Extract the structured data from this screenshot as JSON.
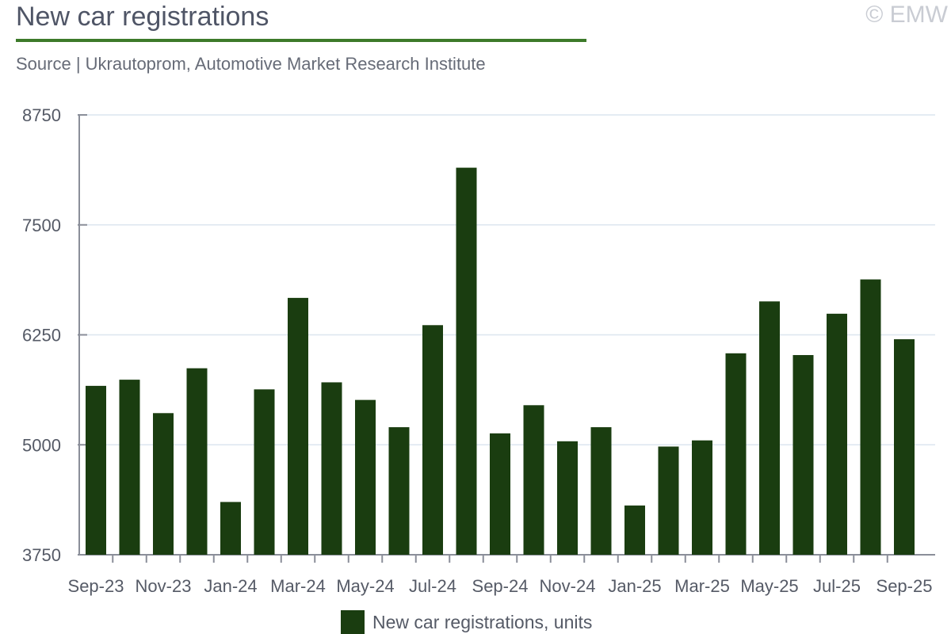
{
  "header": {
    "title": "New car registrations",
    "copyright": "© EMW",
    "source": "Source | Ukrautoprom, Automotive Market Research Institute"
  },
  "colors": {
    "bar": "#1a3d10",
    "accent": "#3d7a2a",
    "grid": "#dce6ef",
    "axis": "#8a8e99",
    "text": "#555a66"
  },
  "chart_data": {
    "type": "bar",
    "categories": [
      "Sep-23",
      "Oct-23",
      "Nov-23",
      "Dec-23",
      "Jan-24",
      "Feb-24",
      "Mar-24",
      "Apr-24",
      "May-24",
      "Jun-24",
      "Jul-24",
      "Aug-24",
      "Sep-24",
      "Oct-24",
      "Nov-24",
      "Dec-24",
      "Jan-25",
      "Feb-25",
      "Mar-25",
      "Apr-25",
      "May-25",
      "Jun-25",
      "Jul-25",
      "Aug-25",
      "Sep-25"
    ],
    "tick_labels": [
      "Sep-23",
      "Nov-23",
      "Jan-24",
      "Mar-24",
      "May-24",
      "Jul-24",
      "Sep-24",
      "Nov-24",
      "Jan-25",
      "Mar-25",
      "May-25",
      "Jul-25",
      "Sep-25"
    ],
    "series": [
      {
        "name": "New car registrations, units",
        "values": [
          5670,
          5740,
          5360,
          5870,
          4350,
          5630,
          6670,
          5710,
          5510,
          5200,
          6360,
          8150,
          5130,
          5450,
          5040,
          5200,
          4310,
          4980,
          5050,
          6040,
          6630,
          6020,
          6490,
          6880,
          6200
        ]
      }
    ],
    "ylim": [
      3750,
      8750
    ],
    "yticks": [
      3750,
      5000,
      6250,
      7500,
      8750
    ],
    "grid": true,
    "legend_position": "bottom"
  }
}
